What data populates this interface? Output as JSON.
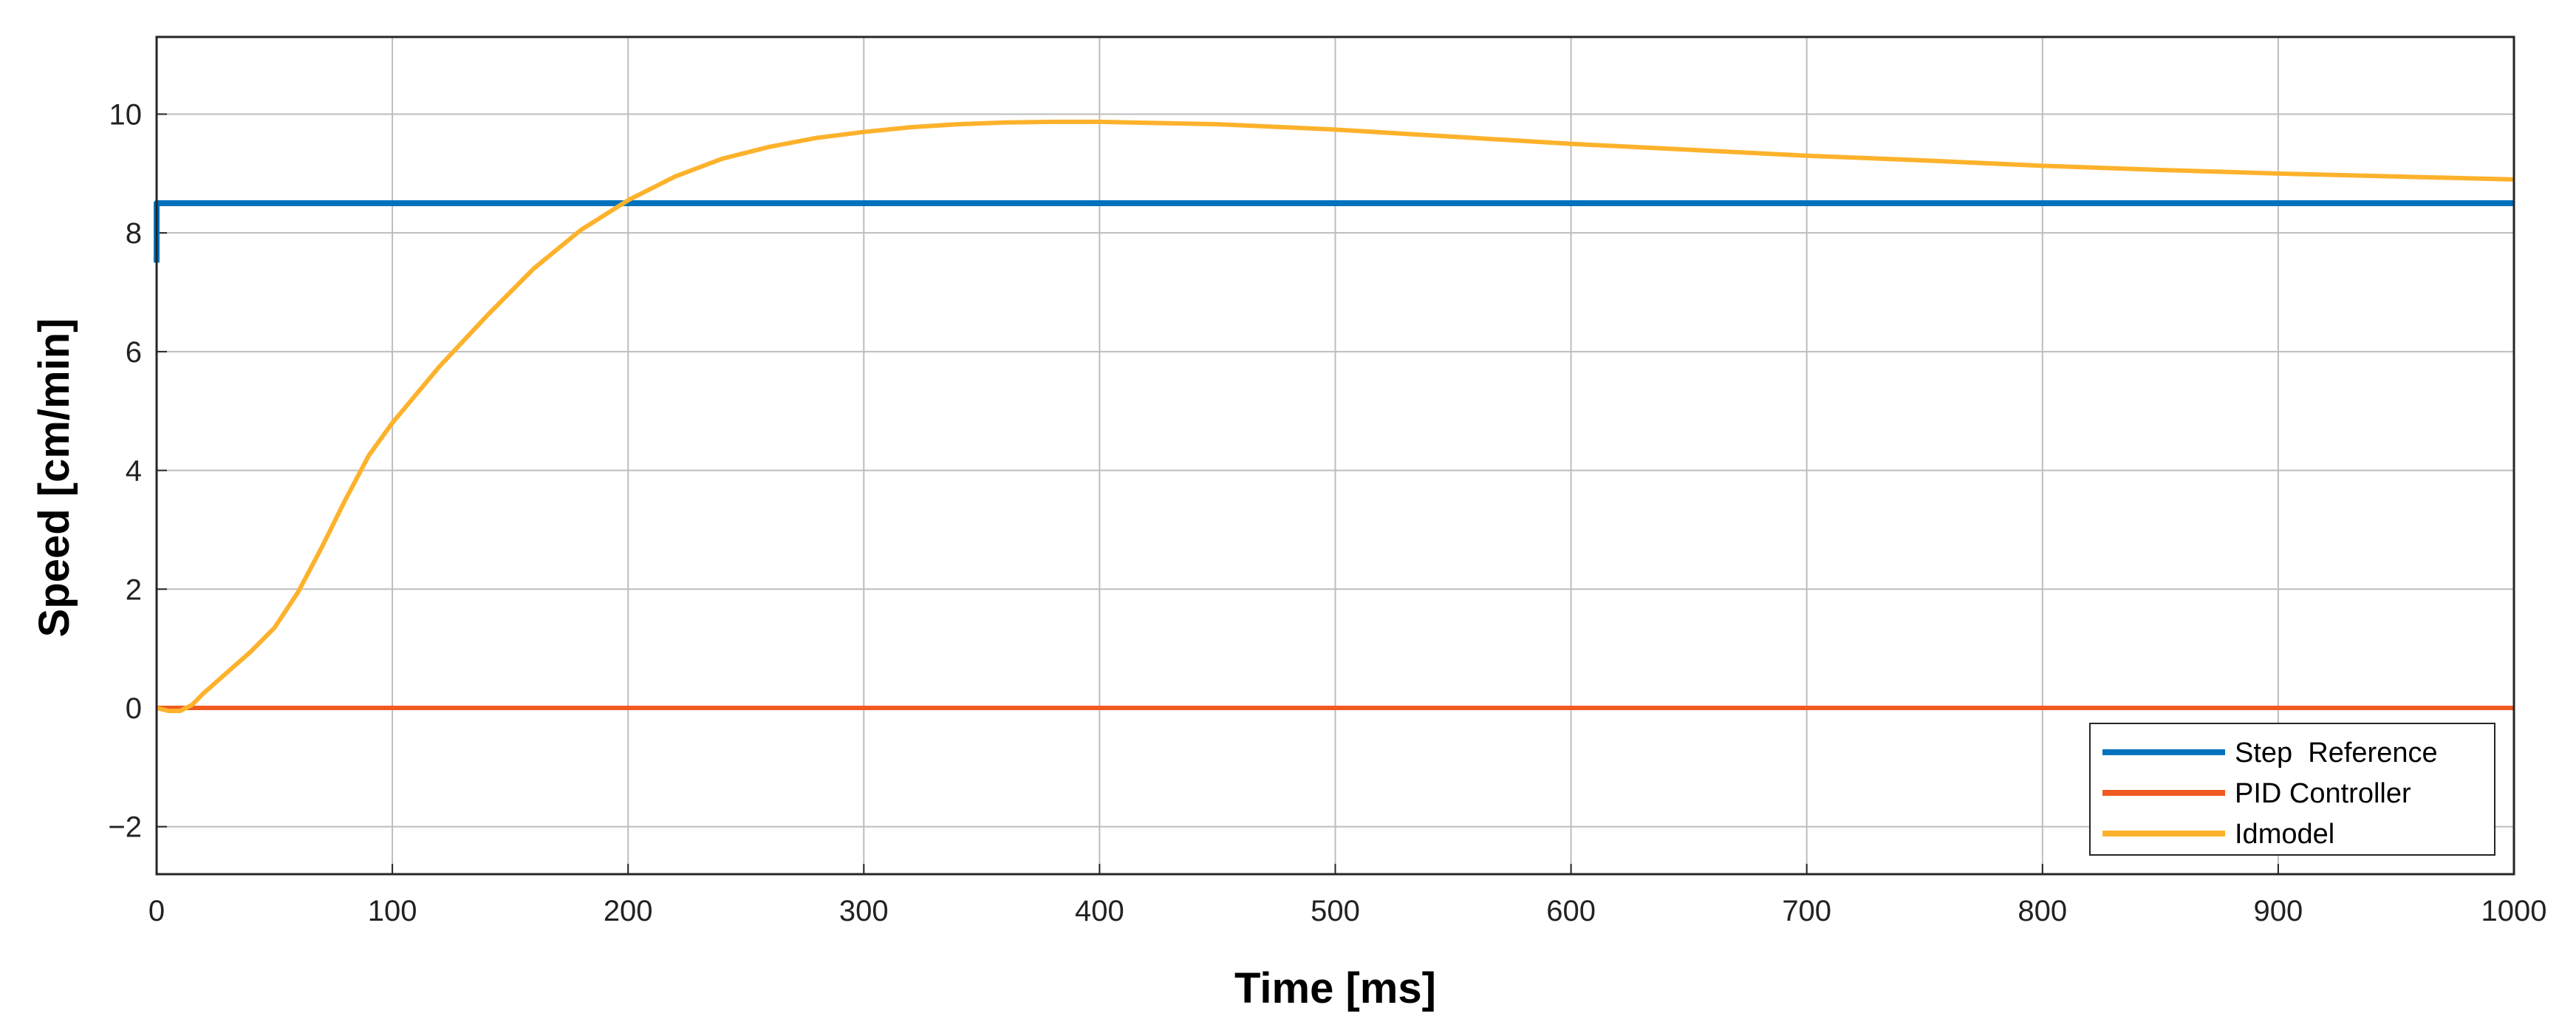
{
  "chart_data": {
    "type": "line",
    "xlabel": "Time [ms]",
    "ylabel": "Speed [cm/min]",
    "xlim": [
      0,
      1000
    ],
    "ylim": [
      -2.8,
      11.3
    ],
    "xticks": [
      0,
      100,
      200,
      300,
      400,
      500,
      600,
      700,
      800,
      900,
      1000
    ],
    "xtick_labels": [
      "0",
      "100",
      "200",
      "300",
      "400",
      "500",
      "600",
      "700",
      "800",
      "900",
      "1000"
    ],
    "yticks": [
      -2,
      0,
      2,
      4,
      6,
      8,
      10
    ],
    "ytick_labels": [
      "−2",
      "0",
      "2",
      "4",
      "6",
      "8",
      "10"
    ],
    "grid": true,
    "legend_position": "bottom-right",
    "series": [
      {
        "name": "Step  Reference",
        "color": "#0072BD",
        "x": [
          0,
          0.01,
          1,
          1000
        ],
        "y": [
          7.5,
          8.5,
          8.5,
          8.5
        ]
      },
      {
        "name": "PID Controller",
        "color": "#F05A1E",
        "x": [
          0,
          1000
        ],
        "y": [
          0,
          0
        ]
      },
      {
        "name": "Idmodel",
        "color": "#FDB22C",
        "x": [
          0,
          5,
          10,
          15,
          20,
          30,
          40,
          50,
          60,
          70,
          80,
          90,
          100,
          120,
          140,
          160,
          180,
          200,
          220,
          240,
          260,
          280,
          300,
          320,
          340,
          360,
          380,
          400,
          450,
          500,
          550,
          600,
          650,
          700,
          750,
          800,
          850,
          900,
          950,
          1000
        ],
        "y": [
          0,
          -0.05,
          -0.05,
          0.05,
          0.25,
          0.6,
          0.95,
          1.35,
          1.95,
          2.7,
          3.5,
          4.25,
          4.8,
          5.75,
          6.6,
          7.4,
          8.05,
          8.55,
          8.95,
          9.25,
          9.45,
          9.6,
          9.7,
          9.78,
          9.83,
          9.86,
          9.87,
          9.87,
          9.83,
          9.74,
          9.62,
          9.5,
          9.4,
          9.3,
          9.22,
          9.13,
          9.06,
          9.0,
          8.95,
          8.9
        ]
      }
    ]
  }
}
